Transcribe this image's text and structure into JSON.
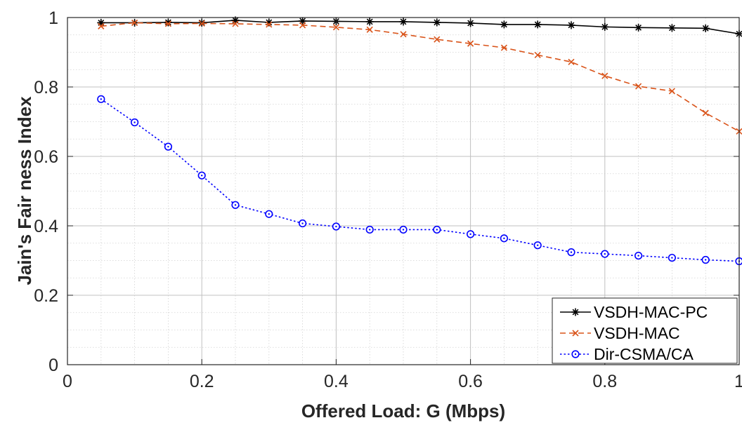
{
  "chart_data": {
    "type": "line",
    "title": "",
    "xlabel": "Offered Load: G (Mbps)",
    "ylabel": "Jain's Fair ness Index",
    "xlim": [
      0,
      1
    ],
    "ylim": [
      0,
      1
    ],
    "xticks": [
      0,
      0.2,
      0.4,
      0.6,
      0.8,
      1
    ],
    "xtick_labels": [
      "0",
      "0.2",
      "0.4",
      "0.6",
      "0.8",
      "1"
    ],
    "yticks": [
      0,
      0.2,
      0.4,
      0.6,
      0.8,
      1
    ],
    "ytick_labels": [
      "0",
      "0.2",
      "0.4",
      "0.6",
      "0.8",
      "1"
    ],
    "grid": true,
    "minor_grid": true,
    "legend_position": "bottom-right",
    "x": [
      0.05,
      0.1,
      0.15,
      0.2,
      0.25,
      0.3,
      0.35,
      0.4,
      0.45,
      0.5,
      0.55,
      0.6,
      0.65,
      0.7,
      0.75,
      0.8,
      0.85,
      0.9,
      0.95,
      1.0
    ],
    "series": [
      {
        "name": "VSDH-MAC-PC",
        "color": "#000000",
        "line_style": "solid",
        "marker": "asterisk",
        "values": [
          0.985,
          0.985,
          0.986,
          0.985,
          0.992,
          0.986,
          0.99,
          0.989,
          0.988,
          0.988,
          0.986,
          0.984,
          0.98,
          0.98,
          0.978,
          0.973,
          0.971,
          0.97,
          0.969,
          0.953
        ]
      },
      {
        "name": "VSDH-MAC",
        "color": "#D95319",
        "line_style": "dashed",
        "marker": "x",
        "values": [
          0.975,
          0.985,
          0.982,
          0.983,
          0.982,
          0.98,
          0.978,
          0.972,
          0.965,
          0.952,
          0.937,
          0.925,
          0.913,
          0.892,
          0.872,
          0.832,
          0.802,
          0.788,
          0.725,
          0.672
        ]
      },
      {
        "name": "Dir-CSMA/CA",
        "color": "#0000FF",
        "line_style": "dotted",
        "marker": "circle-dot",
        "values": [
          0.765,
          0.698,
          0.628,
          0.545,
          0.46,
          0.434,
          0.407,
          0.398,
          0.389,
          0.389,
          0.389,
          0.376,
          0.364,
          0.344,
          0.324,
          0.319,
          0.314,
          0.308,
          0.302,
          0.298
        ]
      }
    ]
  }
}
